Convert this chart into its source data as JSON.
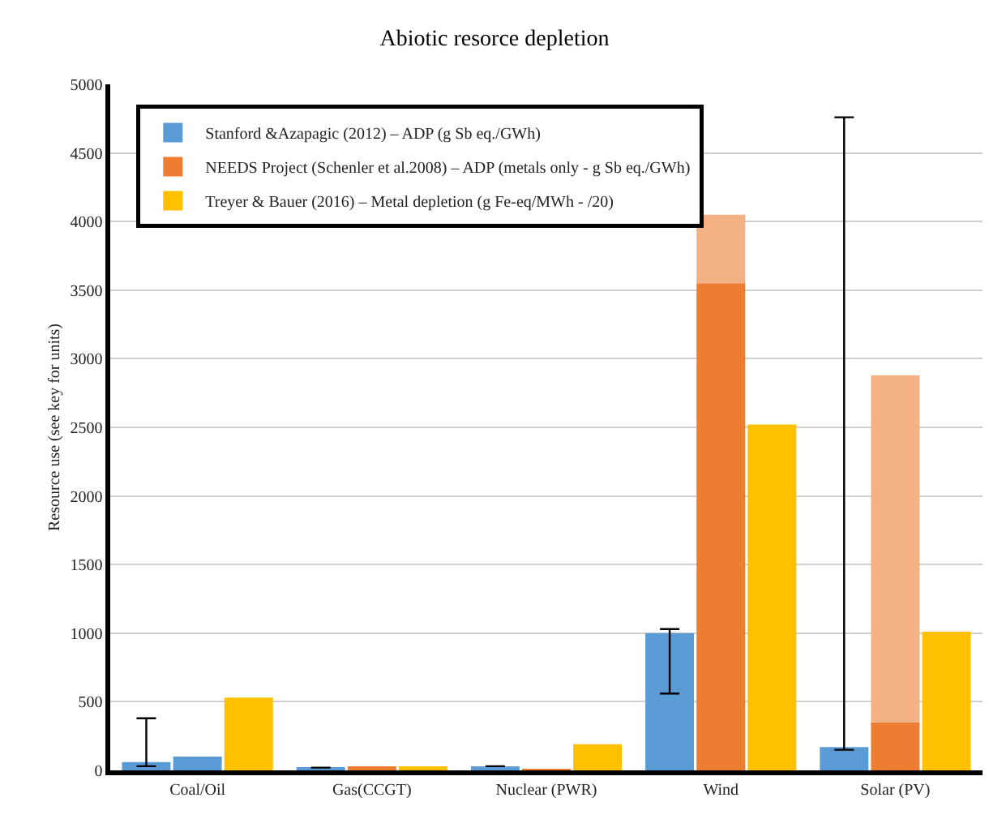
{
  "chart_data": {
    "type": "bar",
    "title": "Abiotic resorce depletion",
    "ylabel": "Resource use (see key for units)",
    "categories": [
      "Coal/Oil",
      "Gas(CCGT)",
      "Nuclear (PWR)",
      "Wind",
      "Solar (PV)"
    ],
    "series": [
      {
        "name": "Stanford &Azapagic (2012) – ADP (g Sb eq./GWh)",
        "color": "#5b9bd5",
        "values": [
          60,
          20,
          30,
          1000,
          170
        ],
        "errors": [
          [
            30,
            380
          ],
          null,
          null,
          [
            560,
            1030
          ],
          [
            150,
            4760
          ]
        ]
      },
      {
        "name": "NEEDS Project (Schenler et al.2008) – ADP (metals only - g Sb eq./GWh)",
        "color": "#ed7d31",
        "colors": [
          "#5b9bd5",
          "#ed7d31",
          "#ed7d31",
          "#ed7d31",
          "#ed7d31"
        ],
        "values": [
          100,
          30,
          10,
          3550,
          350
        ]
      },
      {
        "color": "#f4b183",
        "values": [
          null,
          null,
          null,
          500,
          2530
        ],
        "base": [
          null,
          null,
          null,
          3550,
          350
        ]
      },
      {
        "name": "Treyer & Bauer (2016) – Metal depletion (g Fe-eq/MWh - /20)",
        "color": "#ffc000",
        "values": [
          530,
          30,
          190,
          2520,
          1010
        ]
      }
    ],
    "ylim": [
      0,
      5000
    ],
    "yticks": [
      0,
      500,
      1000,
      1500,
      2000,
      2500,
      3000,
      3500,
      4000,
      4500,
      5000
    ],
    "grid": "y",
    "legend": "top left"
  }
}
